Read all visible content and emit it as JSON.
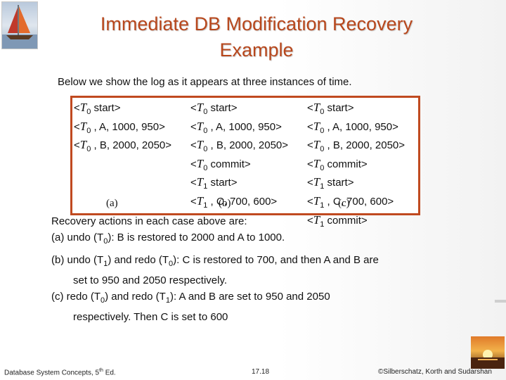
{
  "slide": {
    "title_line1": "Immediate DB Modification Recovery",
    "title_line2": "Example",
    "intro": "Below we show the log as it appears at three instances of time."
  },
  "log_columns": [
    {
      "caption": "(a)",
      "lines": [
        [
          "T",
          "0",
          " start>"
        ],
        [
          "T",
          "0",
          " , A,  1000,  950>"
        ],
        [
          "T",
          "0",
          " , B,  2000,  2050>"
        ]
      ]
    },
    {
      "caption": "(b)",
      "lines": [
        [
          "T",
          "0",
          " start>"
        ],
        [
          "T",
          "0",
          " , A,  1000,  950>"
        ],
        [
          "T",
          "0",
          " , B,  2000,  2050>"
        ],
        [
          "T",
          "0",
          " commit>"
        ],
        [
          "T",
          "1",
          " start>"
        ],
        [
          "T",
          "1",
          " , C,  700,  600>"
        ]
      ]
    },
    {
      "caption": "(c)",
      "lines": [
        [
          "T",
          "0",
          " start>"
        ],
        [
          "T",
          "0",
          " , A,  1000,  950>"
        ],
        [
          "T",
          "0",
          " , B,  2000,  2050>"
        ],
        [
          "T",
          "0",
          " commit>"
        ],
        [
          "T",
          "1",
          " start>"
        ],
        [
          "T",
          "1",
          " , C,  700,  600>"
        ],
        [
          "T",
          "1",
          " commit>"
        ]
      ]
    }
  ],
  "actions": {
    "heading": "Recovery actions in each case above are:",
    "a_pre": "(a)  undo (T",
    "a_sub": "0",
    "a_post": "): B is restored to 2000 and A to 1000.",
    "b1_pre": "(b)  undo (T",
    "b1_sub": "1",
    "b1_mid": ") and redo (T",
    "b1_sub2": "0",
    "b1_post": "): C is restored to 700, and then A and B are",
    "b2": "set to 950 and 2050 respectively.",
    "c1_pre": "(c)  redo (T",
    "c1_sub": "0",
    "c1_mid": ") and redo (T",
    "c1_sub2": "1",
    "c1_post": "): A and B are set to 950 and 2050",
    "c2": "respectively. Then C is set to 600"
  },
  "footer": {
    "left": "Database System Concepts, 5",
    "left_sup": "th",
    "left_end": " Ed.",
    "center": "17.18",
    "right": "©Silberschatz, Korth and Sudarshan"
  },
  "icons": {
    "logo": "sailboat-icon",
    "corner": "sunset-icon"
  }
}
